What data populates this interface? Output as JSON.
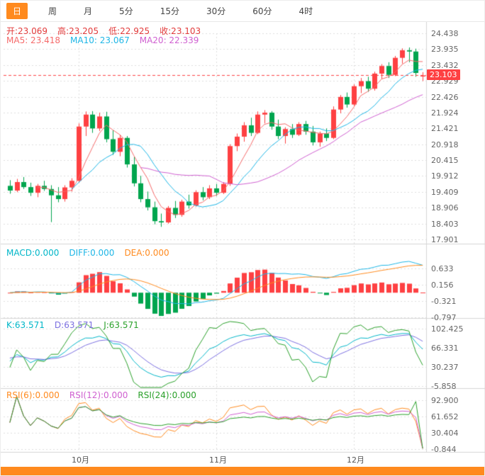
{
  "toolbar": {
    "tabs": [
      {
        "label": "日",
        "active": true
      },
      {
        "label": "周",
        "active": false
      },
      {
        "label": "月",
        "active": false
      },
      {
        "label": "5分",
        "active": false
      },
      {
        "label": "15分",
        "active": false
      },
      {
        "label": "30分",
        "active": false
      },
      {
        "label": "60分",
        "active": false
      },
      {
        "label": "4时",
        "active": false
      }
    ]
  },
  "main": {
    "ohlc": {
      "open": "开:23.069",
      "high": "高:23.205",
      "low": "低:22.925",
      "close": "收:23.103"
    },
    "ma": {
      "ma5": "MA5: 23.418",
      "ma10": "MA10: 23.067",
      "ma20": "MA20: 22.339"
    },
    "price_tag": "23.103"
  },
  "macd": {
    "labels": {
      "macd": "MACD:0.000",
      "diff": "DIFF:0.000",
      "dea": "DEA:0.000"
    }
  },
  "kdj": {
    "labels": {
      "k": "K:63.571",
      "d": "D:63.571",
      "j": "J:63.571"
    }
  },
  "rsi": {
    "labels": {
      "r6": "RSI(6):0.000",
      "r12": "RSI(12):0.000",
      "r24": "RSI(24):0.000"
    }
  },
  "chart_data": {
    "type": "candlestick",
    "timeframe": "日",
    "ohlc_last": {
      "open": 23.069,
      "high": 23.205,
      "low": 22.925,
      "close": 23.103
    },
    "indicators": {
      "ma": {
        "ma5": 23.418,
        "ma10": 23.067,
        "ma20": 22.339
      },
      "macd": {
        "macd": 0.0,
        "diff": 0.0,
        "dea": 0.0
      },
      "kdj": {
        "k": 63.571,
        "d": 63.571,
        "j": 63.571
      },
      "rsi": {
        "rsi6": 0.0,
        "rsi12": 0.0,
        "rsi24": 0.0
      }
    },
    "panels": {
      "main": {
        "axis": [
          "24.438",
          "23.935",
          "23.432",
          "22.929",
          "22.426",
          "21.924",
          "21.421",
          "20.918",
          "20.415",
          "19.912",
          "19.409",
          "18.906",
          "18.403",
          "17.901"
        ],
        "current_price": 23.103
      },
      "macd": {
        "axis": [
          "0.633",
          "0.156",
          "-0.321",
          "-0.797"
        ]
      },
      "kdj": {
        "axis": [
          "102.425",
          "66.331",
          "30.237",
          "-5.858"
        ]
      },
      "rsi": {
        "axis": [
          "92.900",
          "61.652",
          "30.404",
          "-0.844"
        ]
      }
    },
    "months": [
      {
        "label": "10月",
        "index": 10
      },
      {
        "label": "11月",
        "index": 30
      },
      {
        "label": "12月",
        "index": 50
      }
    ],
    "candles": [
      [
        19.6,
        19.78,
        19.35,
        19.45
      ],
      [
        19.45,
        19.82,
        19.4,
        19.72
      ],
      [
        19.72,
        19.88,
        19.5,
        19.56
      ],
      [
        19.56,
        19.7,
        19.28,
        19.38
      ],
      [
        19.38,
        19.66,
        19.24,
        19.6
      ],
      [
        19.6,
        19.76,
        19.44,
        19.5
      ],
      [
        19.5,
        19.62,
        18.45,
        19.3
      ],
      [
        19.3,
        19.56,
        19.08,
        19.18
      ],
      [
        19.18,
        19.62,
        19.1,
        19.55
      ],
      [
        19.55,
        19.84,
        19.42,
        19.76
      ],
      [
        19.76,
        21.58,
        19.7,
        21.48
      ],
      [
        21.48,
        21.96,
        21.18,
        21.86
      ],
      [
        21.86,
        21.97,
        21.28,
        21.42
      ],
      [
        21.42,
        21.92,
        21.34,
        21.8
      ],
      [
        21.8,
        21.95,
        20.98,
        21.08
      ],
      [
        21.08,
        21.36,
        20.58,
        20.68
      ],
      [
        20.68,
        21.22,
        20.54,
        21.12
      ],
      [
        21.12,
        21.18,
        20.18,
        20.28
      ],
      [
        20.28,
        20.52,
        19.58,
        19.68
      ],
      [
        19.68,
        19.92,
        19.08,
        19.18
      ],
      [
        19.18,
        19.42,
        18.82,
        18.92
      ],
      [
        18.92,
        19.1,
        18.38,
        18.48
      ],
      [
        18.48,
        18.72,
        18.3,
        18.44
      ],
      [
        18.44,
        18.96,
        18.4,
        18.9
      ],
      [
        18.9,
        19.12,
        18.58,
        18.68
      ],
      [
        18.68,
        19.16,
        18.62,
        19.1
      ],
      [
        19.1,
        19.32,
        18.88,
        18.98
      ],
      [
        18.98,
        19.46,
        18.94,
        19.4
      ],
      [
        19.4,
        19.56,
        19.14,
        19.24
      ],
      [
        19.24,
        19.62,
        19.18,
        19.52
      ],
      [
        19.52,
        19.66,
        19.28,
        19.38
      ],
      [
        19.38,
        19.72,
        19.34,
        19.66
      ],
      [
        19.66,
        20.92,
        19.6,
        20.86
      ],
      [
        20.86,
        21.26,
        20.7,
        21.16
      ],
      [
        21.16,
        21.62,
        21.0,
        21.52
      ],
      [
        21.52,
        21.76,
        21.18,
        21.28
      ],
      [
        21.28,
        21.96,
        21.24,
        21.86
      ],
      [
        21.86,
        22.0,
        21.58,
        21.92
      ],
      [
        21.92,
        21.97,
        21.38,
        21.48
      ],
      [
        21.48,
        21.7,
        21.08,
        21.18
      ],
      [
        21.18,
        21.46,
        20.94,
        21.4
      ],
      [
        21.4,
        21.56,
        21.12,
        21.22
      ],
      [
        21.22,
        21.62,
        21.18,
        21.56
      ],
      [
        21.56,
        21.66,
        21.22,
        21.32
      ],
      [
        21.32,
        21.5,
        20.88,
        20.98
      ],
      [
        20.98,
        21.32,
        20.84,
        21.26
      ],
      [
        21.26,
        21.42,
        21.02,
        21.12
      ],
      [
        21.12,
        22.12,
        21.08,
        22.02
      ],
      [
        22.02,
        22.48,
        21.9,
        22.42
      ],
      [
        22.42,
        22.56,
        22.08,
        22.18
      ],
      [
        22.18,
        22.82,
        22.14,
        22.76
      ],
      [
        22.76,
        23.02,
        22.54,
        22.92
      ],
      [
        22.92,
        23.06,
        22.58,
        22.68
      ],
      [
        22.68,
        23.22,
        22.62,
        23.16
      ],
      [
        23.16,
        23.46,
        22.98,
        23.4
      ],
      [
        23.4,
        23.52,
        23.02,
        23.12
      ],
      [
        23.12,
        23.72,
        23.08,
        23.66
      ],
      [
        23.66,
        23.96,
        23.48,
        23.9
      ],
      [
        23.9,
        23.99,
        23.52,
        23.86
      ],
      [
        23.86,
        23.95,
        23.06,
        23.18
      ],
      [
        23.069,
        23.205,
        22.925,
        23.103
      ]
    ],
    "colors": {
      "up": "#fe4042",
      "down": "#00a54e",
      "ma5": "#f56a6a",
      "ma10": "#1eb6e6",
      "ma20": "#cf5fd0",
      "diff": "#1eb6e6",
      "dea": "#ff8a1e",
      "k": "#00b6c8",
      "d": "#7b6fe0",
      "j": "#2aa02a",
      "rsi6": "#ff8a1e",
      "rsi12": "#cf5fd0",
      "rsi24": "#2aa02a",
      "grid": "#dedede",
      "price_line": "#fe4042",
      "accent": "#ff8a1e"
    }
  }
}
